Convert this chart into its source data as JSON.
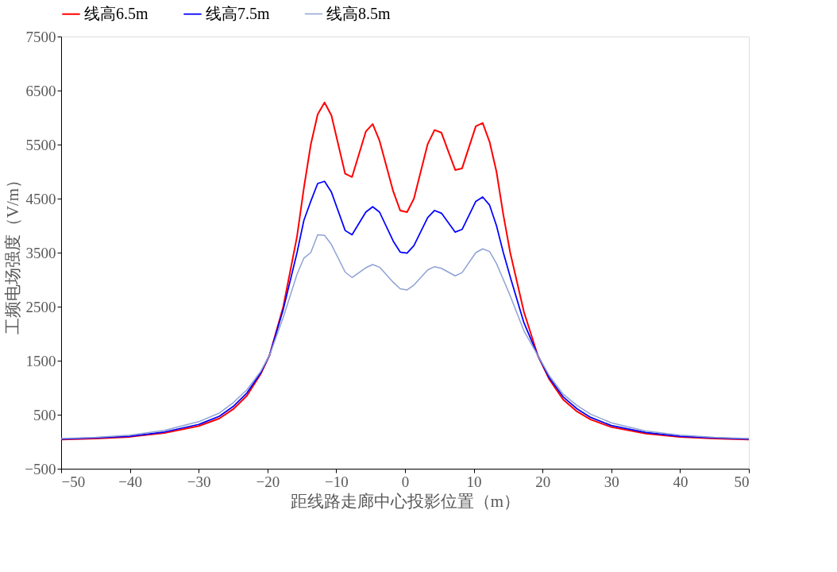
{
  "chart_data": {
    "type": "line",
    "xlabel": "距线路走廊中心投影位置（m）",
    "ylabel": "工频电场强度（V/m）",
    "x": [
      -50,
      -45,
      -40,
      -35,
      -30,
      -27,
      -25,
      -23,
      -21,
      -19.7,
      -17.7,
      -15.7,
      -14.7,
      -13.7,
      -12.7,
      -11.7,
      -10.7,
      -8.7,
      -7.7,
      -5.7,
      -4.7,
      -3.7,
      -1.7,
      -0.7,
      0.3,
      1.3,
      3.3,
      4.3,
      5.3,
      7.3,
      8.3,
      10.3,
      11.3,
      12.3,
      13.3,
      14.3,
      15.3,
      17.3,
      19.3,
      21,
      23,
      25,
      27,
      30,
      35,
      40,
      45,
      50
    ],
    "series": [
      {
        "name": "线高6.5m",
        "color": "#ff0000",
        "values": [
          40,
          60,
          90,
          160,
          290,
          430,
          600,
          850,
          1250,
          1600,
          2500,
          3800,
          4700,
          5500,
          6060,
          6280,
          6040,
          4960,
          4900,
          5740,
          5880,
          5570,
          4630,
          4280,
          4250,
          4500,
          5510,
          5770,
          5720,
          5030,
          5060,
          5840,
          5900,
          5550,
          5000,
          4200,
          3500,
          2400,
          1600,
          1150,
          780,
          560,
          410,
          270,
          150,
          90,
          60,
          40
        ]
      },
      {
        "name": "线高7.5m",
        "color": "#0000ff",
        "values": [
          50,
          70,
          100,
          180,
          320,
          470,
          650,
          900,
          1270,
          1600,
          2450,
          3500,
          4100,
          4450,
          4780,
          4820,
          4620,
          3910,
          3830,
          4250,
          4350,
          4250,
          3710,
          3510,
          3490,
          3630,
          4150,
          4280,
          4230,
          3880,
          3930,
          4450,
          4530,
          4380,
          4000,
          3500,
          3050,
          2200,
          1600,
          1180,
          830,
          610,
          450,
          300,
          170,
          100,
          70,
          50
        ]
      },
      {
        "name": "线高8.5m",
        "color": "#8fa2d4",
        "values": [
          60,
          80,
          120,
          210,
          370,
          530,
          720,
          960,
          1300,
          1600,
          2300,
          3100,
          3400,
          3500,
          3830,
          3820,
          3650,
          3140,
          3040,
          3220,
          3280,
          3230,
          2950,
          2830,
          2810,
          2900,
          3180,
          3240,
          3210,
          3070,
          3130,
          3500,
          3570,
          3520,
          3300,
          3000,
          2700,
          2050,
          1600,
          1220,
          880,
          670,
          510,
          350,
          200,
          120,
          80,
          60
        ]
      }
    ],
    "xlim": [
      -50,
      50
    ],
    "xticks": [
      -50,
      -40,
      -30,
      -20,
      -10,
      0,
      10,
      20,
      30,
      40,
      50
    ],
    "ylim": [
      -500,
      7500
    ],
    "yticks": [
      -500,
      500,
      1500,
      2500,
      3500,
      4500,
      5500,
      6500,
      7500
    ],
    "grid": false,
    "legend": "top",
    "marker": "none",
    "line_style": "solid"
  }
}
